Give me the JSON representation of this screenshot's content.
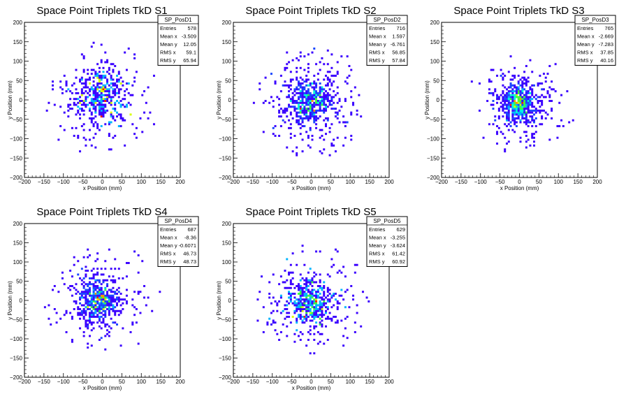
{
  "chart_data": [
    {
      "type": "heatmap",
      "title": "Space Point Triplets TkD S1",
      "xlabel": "x Position (mm)",
      "ylabel": "y Position (mm)",
      "xlim": [
        -200,
        200
      ],
      "ylim": [
        -200,
        200
      ],
      "xticks": [
        "−200",
        "−150",
        "−100",
        "−50",
        "0",
        "50",
        "100",
        "150",
        "200"
      ],
      "yticks": [
        "−200",
        "−150",
        "−100",
        "−50",
        "0",
        "50",
        "100",
        "150",
        "200"
      ],
      "stats": {
        "name": "SP_PosD1",
        "rows": [
          [
            "Entries",
            "578"
          ],
          [
            "Mean x",
            "-3.509"
          ],
          [
            "Mean y",
            "12.05"
          ],
          [
            "RMS x",
            "59.1"
          ],
          [
            "RMS y",
            "65.94"
          ]
        ]
      },
      "distribution": {
        "mean_x": -3.509,
        "mean_y": 12.05,
        "rms_x": 59.1,
        "rms_y": 65.94,
        "entries": 578
      }
    },
    {
      "type": "heatmap",
      "title": "Space Point Triplets TkD S2",
      "xlabel": "x Position (mm)",
      "ylabel": "y Position (mm)",
      "xlim": [
        -200,
        200
      ],
      "ylim": [
        -200,
        200
      ],
      "xticks": [
        "−200",
        "−150",
        "−100",
        "−50",
        "0",
        "50",
        "100",
        "150",
        "200"
      ],
      "yticks": [
        "−200",
        "−150",
        "−100",
        "−50",
        "0",
        "50",
        "100",
        "150",
        "200"
      ],
      "stats": {
        "name": "SP_PosD2",
        "rows": [
          [
            "Entries",
            "716"
          ],
          [
            "Mean x",
            "1.597"
          ],
          [
            "Mean y",
            "-6.761"
          ],
          [
            "RMS x",
            "56.85"
          ],
          [
            "RMS y",
            "57.84"
          ]
        ]
      },
      "distribution": {
        "mean_x": 1.597,
        "mean_y": -6.761,
        "rms_x": 56.85,
        "rms_y": 57.84,
        "entries": 716
      }
    },
    {
      "type": "heatmap",
      "title": "Space Point Triplets TkD S3",
      "xlabel": "x Position (mm)",
      "ylabel": "y Position (mm)",
      "xlim": [
        -200,
        200
      ],
      "ylim": [
        -200,
        200
      ],
      "xticks": [
        "−200",
        "−150",
        "−100",
        "−50",
        "0",
        "50",
        "100",
        "150",
        "200"
      ],
      "yticks": [
        "−200",
        "−150",
        "−100",
        "−50",
        "0",
        "50",
        "100",
        "150",
        "200"
      ],
      "stats": {
        "name": "SP_PosD3",
        "rows": [
          [
            "Entries",
            "765"
          ],
          [
            "Mean x",
            "-2.669"
          ],
          [
            "Mean y",
            "-7.283"
          ],
          [
            "RMS x",
            "37.85"
          ],
          [
            "RMS y",
            "40.16"
          ]
        ]
      },
      "distribution": {
        "mean_x": -2.669,
        "mean_y": -7.283,
        "rms_x": 37.85,
        "rms_y": 40.16,
        "entries": 765
      }
    },
    {
      "type": "heatmap",
      "title": "Space Point Triplets TkD S4",
      "xlabel": "x Position (mm)",
      "ylabel": "y Position (mm)",
      "xlim": [
        -200,
        200
      ],
      "ylim": [
        -200,
        200
      ],
      "xticks": [
        "−200",
        "−150",
        "−100",
        "−50",
        "0",
        "50",
        "100",
        "150",
        "200"
      ],
      "yticks": [
        "−200",
        "−150",
        "−100",
        "−50",
        "0",
        "50",
        "100",
        "150",
        "200"
      ],
      "stats": {
        "name": "SP_PosD4",
        "rows": [
          [
            "Entries",
            "687"
          ],
          [
            "Mean x",
            "-8.36"
          ],
          [
            "Mean y",
            "-0.6071"
          ],
          [
            "RMS x",
            "46.73"
          ],
          [
            "RMS y",
            "48.73"
          ]
        ]
      },
      "distribution": {
        "mean_x": -8.36,
        "mean_y": -0.6071,
        "rms_x": 46.73,
        "rms_y": 48.73,
        "entries": 687
      }
    },
    {
      "type": "heatmap",
      "title": "Space Point Triplets TkD S5",
      "xlabel": "x Position (mm)",
      "ylabel": "y Position (mm)",
      "xlim": [
        -200,
        200
      ],
      "ylim": [
        -200,
        200
      ],
      "xticks": [
        "−200",
        "−150",
        "−100",
        "−50",
        "0",
        "50",
        "100",
        "150",
        "200"
      ],
      "yticks": [
        "−200",
        "−150",
        "−100",
        "−50",
        "0",
        "50",
        "100",
        "150",
        "200"
      ],
      "stats": {
        "name": "SP_PosD5",
        "rows": [
          [
            "Entries",
            "629"
          ],
          [
            "Mean x",
            "-3.255"
          ],
          [
            "Mean y",
            "-3.624"
          ],
          [
            "RMS x",
            "61.42"
          ],
          [
            "RMS y",
            "60.92"
          ]
        ]
      },
      "distribution": {
        "mean_x": -3.255,
        "mean_y": -3.624,
        "rms_x": 61.42,
        "rms_y": 60.92,
        "entries": 629
      }
    }
  ],
  "colors": {
    "palette": [
      "#3a00ff",
      "#1a46ff",
      "#00b4ff",
      "#00ffd8",
      "#3cff3c",
      "#d8ff00",
      "#ff9600",
      "#ff1e00"
    ]
  }
}
